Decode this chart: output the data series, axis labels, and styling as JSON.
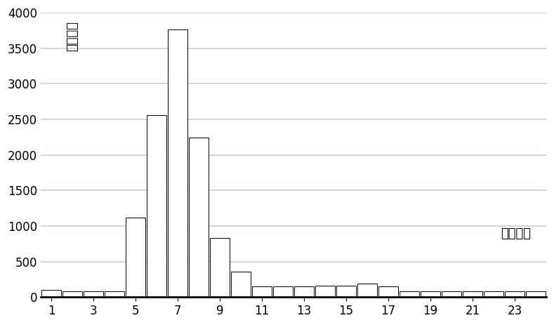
{
  "hours": [
    1,
    2,
    3,
    4,
    5,
    6,
    7,
    8,
    9,
    10,
    11,
    12,
    13,
    14,
    15,
    16,
    17,
    18,
    19,
    20,
    21,
    22,
    23,
    24
  ],
  "values": [
    100,
    80,
    80,
    80,
    1120,
    2560,
    3760,
    2240,
    830,
    360,
    155,
    155,
    155,
    160,
    160,
    195,
    155,
    80,
    80,
    80,
    80,
    80,
    80,
    80
  ],
  "ylabel": "车辆数量",
  "xlabel_note": "到达时间",
  "xtick_labels": [
    "1",
    "3",
    "5",
    "7",
    "9",
    "11",
    "13",
    "15",
    "17",
    "19",
    "21",
    "23"
  ],
  "xtick_positions": [
    1,
    3,
    5,
    7,
    9,
    11,
    13,
    15,
    17,
    19,
    21,
    23
  ],
  "ylim": [
    0,
    4000
  ],
  "yticks": [
    0,
    500,
    1000,
    1500,
    2000,
    2500,
    3000,
    3500,
    4000
  ],
  "bar_color": "#ffffff",
  "bar_edgecolor": "#000000",
  "background_color": "#ffffff",
  "grid_color": "#d8c8d8",
  "axis_fontsize": 12,
  "text_fontsize": 13,
  "xlim_left": 0.5,
  "xlim_right": 24.5
}
